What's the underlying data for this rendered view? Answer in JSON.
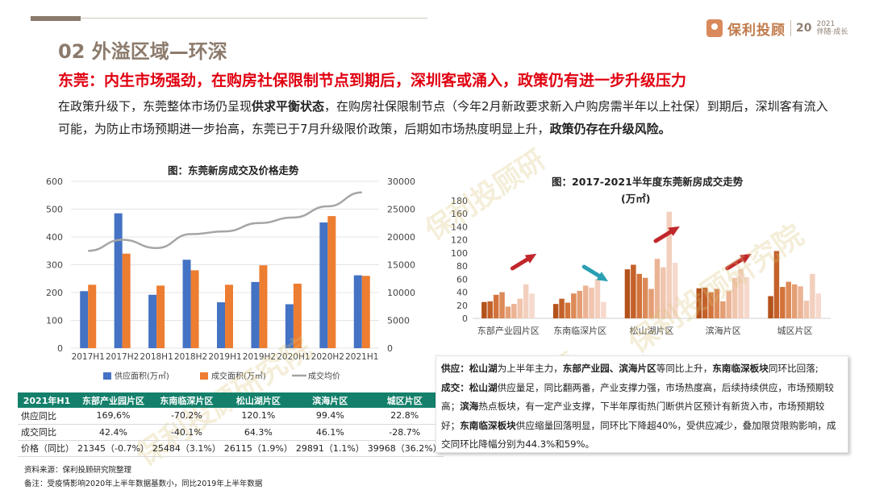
{
  "header": {
    "section": "02 外溢区域—环深",
    "headline": "东莞：内生市场强劲，在购房社保限制节点到期后，深圳客或涌入，政策仍有进一步升级压力",
    "para_1": "在政策升级下，东莞整体市场仍呈现",
    "para_b1": "供求平衡状态",
    "para_2": "，在购房社保限制节点（今年2月新政要求新入户购房需半年以上社保）到期后，深圳客有流入可能，为防止市场预期进一步抬高，东莞已于7月升级限价政策，后期如市场热度明显上升，",
    "para_b2": "政策仍存在升级风险。"
  },
  "logo": {
    "name": "保利投顾",
    "year": "20",
    "year2": "2021",
    "tag": "伴随·成长"
  },
  "watermark": "保利投顾研究院",
  "chart_data": [
    {
      "type": "bar",
      "title": "图：东莞新房成交及价格走势",
      "categories": [
        "2017H1",
        "2017H2",
        "2018H1",
        "2018H2",
        "2019H1",
        "2019H2",
        "2020H1",
        "2020H2",
        "2021H1"
      ],
      "ylim": [
        0,
        600
      ],
      "y2lim": [
        0,
        30000
      ],
      "yticks": [
        "600",
        "500",
        "400",
        "300",
        "200",
        "100",
        "0"
      ],
      "y2ticks": [
        "30000",
        "25000",
        "20000",
        "15000",
        "10000",
        "5000",
        "0"
      ],
      "series": [
        {
          "name": "供应面积(万㎡)",
          "kind": "bar",
          "color": "#4472c4",
          "values": [
            205,
            485,
            192,
            318,
            165,
            238,
            158,
            452,
            262
          ]
        },
        {
          "name": "成交面积(万㎡)",
          "kind": "bar",
          "color": "#ed7d31",
          "values": [
            228,
            340,
            225,
            280,
            228,
            298,
            232,
            475,
            260
          ]
        },
        {
          "name": "成交均价",
          "kind": "line",
          "axis": "right",
          "color": "#a5a5a5",
          "values": [
            17500,
            19500,
            18000,
            20500,
            21000,
            22500,
            23500,
            25500,
            28000
          ]
        }
      ],
      "legend": "bottom"
    },
    {
      "type": "bar",
      "title": "图：2017-2021半年度东莞新房成交走势",
      "subtitle": "(万㎡)",
      "categories": [
        "东部产业园片区",
        "东南临深片区",
        "松山湖片区",
        "滨海片区",
        "城区片区"
      ],
      "ylim": [
        0,
        180
      ],
      "yticks": [
        "180",
        "160",
        "140",
        "120",
        "100",
        "80",
        "60",
        "40",
        "20",
        "0"
      ],
      "groups": [
        [
          25,
          26,
          36,
          40,
          18,
          22,
          30,
          52,
          38
        ],
        [
          22,
          30,
          24,
          38,
          42,
          50,
          47,
          60,
          25
        ],
        [
          75,
          82,
          68,
          62,
          45,
          91,
          78,
          163,
          85
        ],
        [
          46,
          47,
          40,
          45,
          26,
          42,
          62,
          75,
          63
        ],
        [
          34,
          103,
          48,
          56,
          52,
          49,
          27,
          68,
          38
        ]
      ],
      "bar_colors": [
        "#b3521b",
        "#c4612a",
        "#d2733b",
        "#dc8a58",
        "#e49e74",
        "#ebb394",
        "#f0c4ad",
        "#f3cfbe",
        "#f6d9cc"
      ],
      "arrows": [
        {
          "group": 0,
          "dir": "up",
          "color": "#c0262a"
        },
        {
          "group": 1,
          "dir": "down",
          "color": "#2a9fb2"
        },
        {
          "group": 2,
          "dir": "up",
          "color": "#c0262a"
        },
        {
          "group": 3,
          "dir": "up",
          "color": "#c0262a"
        }
      ]
    }
  ],
  "table": {
    "headers": [
      "2021年H1",
      "东部产业园片区",
      "东南临深片区",
      "松山湖片区",
      "滨海片区",
      "城区片区"
    ],
    "rows": [
      [
        "供应同比",
        "169,6%",
        "-70.2%",
        "120.1%",
        "99.4%",
        "22.8%"
      ],
      [
        "成交同比",
        "42.4%",
        "-40.1%",
        "64.3%",
        "46.1%",
        "-28.7%"
      ],
      [
        "价格（同比）",
        "21345（-0.7%）",
        "25484（3.1%）",
        "26115（1.9%）",
        "29891（1.1%）",
        "39968（36.2%）"
      ]
    ]
  },
  "notes": {
    "source": "资料来源：保利投顾研究院整理",
    "remark": "备注：受疫情影响2020年上半年数据基数小，同比2019年上半年数据"
  },
  "box": {
    "l1_a": "供应：",
    "l1_b": "松山湖",
    "l1_c": "为上半年主力，",
    "l1_d": "东部产业园、滨海片区",
    "l1_e": "等同比上升，",
    "l1_f": "东南临深板块",
    "l1_g": "同环比回落;",
    "l2_a": "成交：",
    "l2_b": "松山湖",
    "l2_c": "供应量足，同比翻两番，产业支撑力强，市场热度高，后续持续供应，市场预期较高；",
    "l2_d": "滨海",
    "l2_e": "热点板块，有一定产业支撑，下半年厚街热门断供片区预计有新货入市，市场预期较好；",
    "l2_f": "东南临深板块",
    "l2_g": "供应缩量回落明显，同环比下降超40%，受供应减少，叠加限贷限购影响，成交同环比降幅分别为44.3%和59%。"
  }
}
